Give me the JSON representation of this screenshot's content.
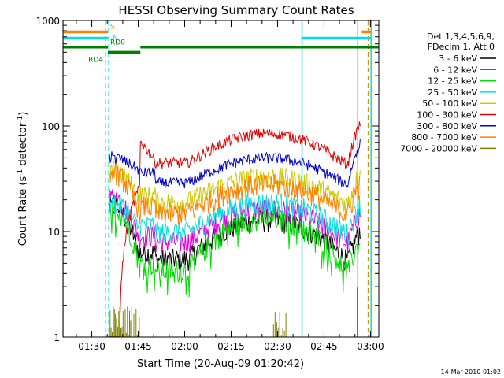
{
  "chart_data": {
    "type": "line",
    "title": "HESSI Observing Summary Count Rates",
    "xlabel": "Start Time (20-Aug-09 01:20:42)",
    "ylabel_main": "Count Rate (s",
    "ylabel_sup1": "-1",
    "ylabel_mid": " detector",
    "ylabel_sup2": "-1",
    "ylabel_end": ")",
    "yscale": "log",
    "xlim_minutes": [
      0,
      102
    ],
    "ylim": [
      1,
      1000
    ],
    "x_ticks": [
      {
        "label": "01:30",
        "minute": 9.3
      },
      {
        "label": "01:45",
        "minute": 24.3
      },
      {
        "label": "02:00",
        "minute": 39.3
      },
      {
        "label": "02:15",
        "minute": 54.3
      },
      {
        "label": "02:30",
        "minute": 69.3
      },
      {
        "label": "02:45",
        "minute": 84.3
      },
      {
        "label": "03:00",
        "minute": 99.3
      }
    ],
    "y_ticks": [
      {
        "label": "1",
        "value": 1
      },
      {
        "label": "10",
        "value": 10
      },
      {
        "label": "100",
        "value": 100
      },
      {
        "label": "1000",
        "value": 1000
      }
    ],
    "legend_header": [
      "Det 1,3,4,5,6,9,",
      "FDecim 1, Att 0"
    ],
    "legend_placement": "right",
    "series": [
      {
        "name": "3 - 6 keV",
        "color": "#000000",
        "shape": "low",
        "base": 5.5,
        "peak": 13,
        "start": 17,
        "jump": 0
      },
      {
        "name": "6 - 12 keV",
        "color": "#e000e0",
        "shape": "low",
        "base": 8,
        "peak": 16.5,
        "start": 21,
        "jump": 0
      },
      {
        "name": "12 - 25 keV",
        "color": "#00dd00",
        "shape": "low",
        "base": 4.3,
        "peak": 13.5,
        "start": 16,
        "jump": 0
      },
      {
        "name": "25 - 50 keV",
        "color": "#00e0e0",
        "shape": "low",
        "base": 10,
        "peak": 19,
        "start": 19,
        "jump": 0
      },
      {
        "name": "50 - 100 keV",
        "color": "#d0c800",
        "shape": "low",
        "base": 19,
        "peak": 33,
        "start": 38,
        "jump": 0
      },
      {
        "name": "100 - 300 keV",
        "color": "#e00000",
        "shape": "high",
        "base": 45,
        "peak": 85,
        "start": 0,
        "jump": 72
      },
      {
        "name": "300 - 800 keV",
        "color": "#0000cc",
        "shape": "high",
        "base": 29,
        "peak": 50,
        "start": 50,
        "jump": 0
      },
      {
        "name": "800 - 7000 keV",
        "color": "#ff8000",
        "shape": "low",
        "base": 15,
        "peak": 28,
        "start": 35,
        "jump": 0
      },
      {
        "name": "7000 - 20000 keV",
        "color": "#808000",
        "shape": "sparse",
        "base": 1,
        "peak": 2,
        "start": 2,
        "jump": 0
      }
    ],
    "flags": [
      {
        "label": "S",
        "color": "#ff8000",
        "value": 780,
        "segments": [
          [
            0,
            14.5
          ],
          [
            96.5,
            99.5
          ]
        ]
      },
      {
        "label": "N",
        "color": "#00e0e0",
        "value": 680,
        "segments": [
          [
            0,
            14.5
          ],
          [
            77,
            99.5
          ]
        ]
      },
      {
        "label": "RD0",
        "color": "#008000",
        "value": 560,
        "segments": [
          [
            0,
            14.5
          ],
          [
            25,
            102
          ]
        ]
      },
      {
        "label": "RD4",
        "color": "#008000",
        "value": 500,
        "segments": [
          [
            14.5,
            25
          ]
        ]
      }
    ],
    "vlines": [
      {
        "minute": 0,
        "color": "#00e0e0",
        "style": "solid"
      },
      {
        "minute": 13.8,
        "color": "#ff8000",
        "style": "dashed"
      },
      {
        "minute": 14.8,
        "color": "#00e0e0",
        "style": "dashed"
      },
      {
        "minute": 77.2,
        "color": "#00e0e0",
        "style": "solid"
      },
      {
        "minute": 95.2,
        "color": "#ff8000",
        "style": "solid"
      },
      {
        "minute": 99.5,
        "color": "#00e0e0",
        "style": "solid"
      },
      {
        "minute": 98.6,
        "color": "#ff8000",
        "style": "dashed"
      }
    ]
  },
  "footer": "14-Mar-2010 01:02"
}
